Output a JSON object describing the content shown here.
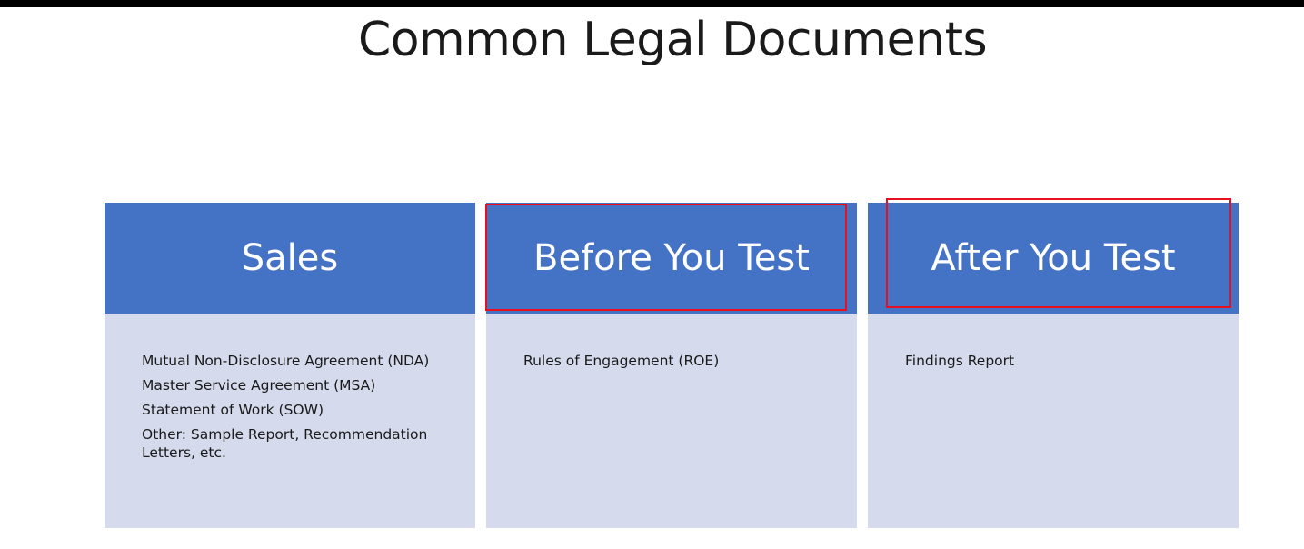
{
  "title": "Common Legal Documents",
  "columns": [
    {
      "header": "Sales",
      "items": [
        "Mutual Non-Disclosure Agreement (NDA)",
        "Master Service Agreement (MSA)",
        "Statement of Work (SOW)",
        "Other: Sample Report, Recommendation Letters, etc."
      ]
    },
    {
      "header": "Before You Test",
      "items": [
        "Rules of Engagement (ROE)"
      ]
    },
    {
      "header": "After You Test",
      "items": [
        "Findings Report"
      ]
    }
  ],
  "colors": {
    "header_bg": "#4472c4",
    "body_bg": "#d5dbed",
    "highlight": "#e8101e"
  }
}
